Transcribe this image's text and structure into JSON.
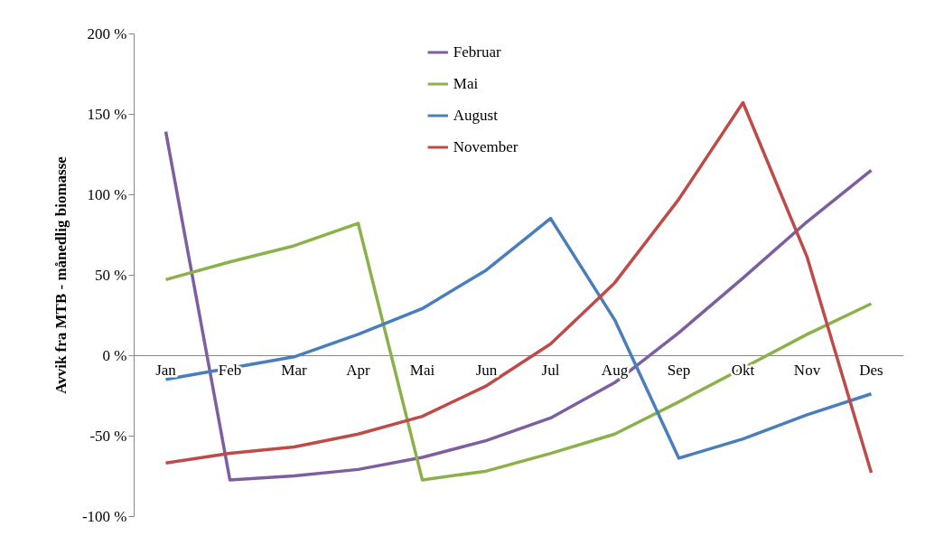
{
  "chart_data": {
    "type": "line",
    "ylabel": "Avvik fra MTB - månedlig biomasse",
    "categories": [
      "Jan",
      "Feb",
      "Mar",
      "Apr",
      "Mai",
      "Jun",
      "Jul",
      "Aug",
      "Sep",
      "Okt",
      "Nov",
      "Des"
    ],
    "series": [
      {
        "name": "Februar",
        "color": "#7d5fa0",
        "values": [
          139,
          -77.5,
          -75,
          -71,
          -63.5,
          -53,
          -39,
          -17,
          14,
          48,
          83,
          115
        ]
      },
      {
        "name": "Mai",
        "color": "#8db14a",
        "values": [
          47,
          58,
          68,
          82,
          -77.5,
          -72,
          -61,
          -49,
          -29,
          -8,
          13,
          32
        ]
      },
      {
        "name": "August",
        "color": "#4a7ebb",
        "values": [
          -15,
          -8,
          -1,
          13,
          29,
          53,
          85,
          22,
          -64,
          -52,
          -37,
          -24
        ]
      },
      {
        "name": "November",
        "color": "#be4b48",
        "values": [
          -67,
          -61,
          -57,
          -49,
          -38,
          -19,
          7,
          45,
          97,
          157,
          61,
          -73
        ]
      }
    ],
    "ylim": [
      -100,
      200
    ],
    "yticks": [
      {
        "value": -100,
        "label": "-100 %"
      },
      {
        "value": -50,
        "label": "-50 %"
      },
      {
        "value": 0,
        "label": "0 %"
      },
      {
        "value": 50,
        "label": "50 %"
      },
      {
        "value": 100,
        "label": "100 %"
      },
      {
        "value": 150,
        "label": "150 %"
      },
      {
        "value": 200,
        "label": "200 %"
      }
    ],
    "grid": false,
    "legend": "top",
    "marker": "none",
    "line_style": "solid"
  }
}
